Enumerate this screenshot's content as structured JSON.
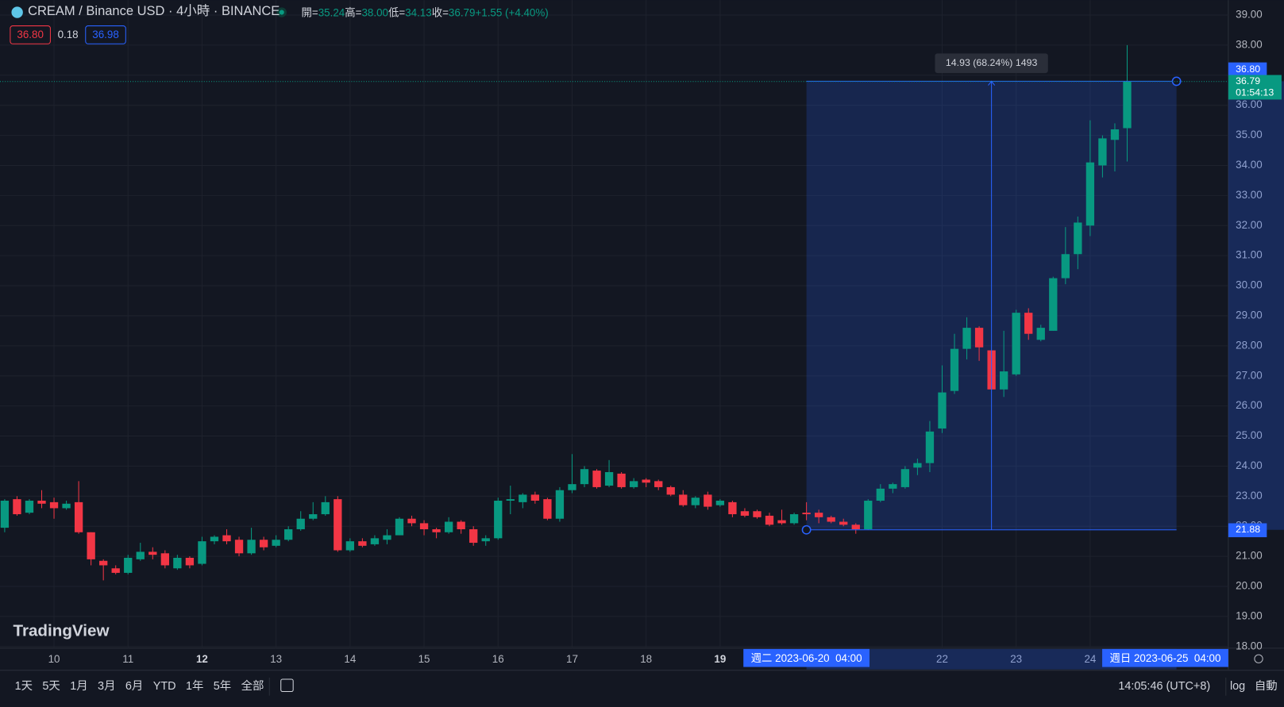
{
  "header": {
    "symbol": "CREAM / Binance USD · 4小時 · BINANCE",
    "ohlc": [
      {
        "label": "開=",
        "value": "35.24"
      },
      {
        "label": "高=",
        "value": "38.00"
      },
      {
        "label": "低=",
        "value": "34.13"
      },
      {
        "label": "收=",
        "value": "36.79"
      }
    ],
    "change": "+1.55 (+4.40%)",
    "bid": "36.80",
    "spread": "0.18",
    "ask": "36.98"
  },
  "chart_data": {
    "type": "candlestick",
    "up_color": "#089981",
    "down_color": "#f23645",
    "open": [
      21.95,
      22.9,
      22.45,
      22.85,
      22.8,
      22.6,
      22.8,
      21.8,
      20.85,
      20.6,
      20.45,
      20.9,
      21.15,
      21.1,
      20.6,
      20.95,
      20.75,
      21.5,
      21.7,
      21.55,
      21.1,
      21.55,
      21.35,
      21.55,
      21.9,
      22.25,
      22.4,
      22.9,
      21.2,
      21.5,
      21.4,
      21.55,
      21.7,
      22.25,
      22.1,
      21.9,
      21.8,
      22.15,
      21.9,
      21.5,
      21.6,
      22.85,
      22.8,
      23.05,
      22.9,
      22.25,
      23.2,
      23.4,
      23.85,
      23.35,
      23.75,
      23.3,
      23.55,
      23.5,
      23.3,
      23.05,
      22.7,
      23.05,
      22.7,
      22.8,
      22.5,
      22.5,
      22.35,
      22.2,
      22.1,
      22.45,
      22.45,
      22.3,
      22.15,
      22.05,
      21.9,
      22.85,
      23.25,
      23.3,
      23.95,
      24.1,
      25.25,
      26.5,
      27.9,
      28.6,
      27.85,
      26.55,
      27.05,
      29.1,
      28.2,
      28.5,
      30.25,
      31.05,
      32.0,
      34.0,
      34.85,
      35.24
    ],
    "high": [
      22.9,
      23.0,
      22.9,
      23.2,
      22.95,
      22.85,
      23.5,
      21.8,
      20.9,
      20.7,
      21.05,
      21.45,
      21.3,
      21.2,
      21.05,
      21.0,
      21.65,
      21.7,
      21.9,
      21.65,
      21.95,
      21.65,
      21.7,
      22.0,
      22.5,
      22.8,
      23.0,
      23.0,
      21.6,
      21.6,
      21.7,
      21.9,
      22.3,
      22.35,
      22.2,
      21.95,
      22.3,
      22.2,
      22.0,
      21.7,
      22.95,
      23.35,
      23.1,
      23.15,
      22.95,
      23.3,
      24.4,
      24.0,
      23.9,
      24.2,
      23.8,
      23.6,
      23.6,
      23.55,
      23.35,
      23.2,
      23.0,
      23.15,
      22.9,
      22.85,
      22.6,
      22.55,
      22.45,
      22.55,
      22.45,
      22.8,
      22.55,
      22.35,
      22.25,
      22.1,
      22.9,
      23.4,
      23.45,
      24.0,
      24.25,
      25.5,
      27.35,
      28.4,
      28.95,
      28.65,
      27.85,
      28.5,
      29.2,
      29.25,
      28.7,
      30.3,
      31.95,
      32.3,
      35.5,
      35.0,
      35.4,
      38.0
    ],
    "low": [
      21.8,
      22.35,
      22.4,
      22.6,
      22.25,
      22.55,
      21.75,
      20.7,
      20.2,
      20.4,
      20.4,
      20.85,
      20.9,
      20.6,
      20.55,
      20.6,
      20.7,
      21.4,
      21.4,
      21.0,
      21.05,
      21.2,
      21.3,
      21.5,
      21.85,
      22.2,
      22.35,
      21.15,
      21.15,
      21.3,
      21.35,
      21.4,
      21.7,
      22.0,
      21.7,
      21.6,
      21.75,
      21.75,
      21.35,
      21.35,
      21.55,
      22.4,
      22.6,
      22.75,
      22.2,
      22.15,
      23.1,
      23.3,
      23.25,
      23.3,
      23.25,
      23.25,
      23.3,
      23.2,
      23.0,
      22.65,
      22.6,
      22.55,
      22.65,
      22.3,
      22.3,
      22.25,
      22.0,
      22.05,
      22.05,
      22.2,
      22.1,
      22.1,
      22.0,
      21.75,
      21.88,
      22.8,
      23.1,
      23.25,
      23.7,
      23.8,
      25.1,
      26.4,
      27.55,
      27.5,
      26.55,
      26.3,
      27.0,
      28.2,
      28.15,
      28.5,
      30.05,
      30.55,
      31.65,
      33.6,
      33.8,
      34.13
    ],
    "close": [
      22.85,
      22.4,
      22.85,
      22.75,
      22.6,
      22.75,
      21.8,
      20.9,
      20.7,
      20.45,
      20.95,
      21.15,
      21.05,
      20.7,
      20.95,
      20.7,
      21.5,
      21.65,
      21.5,
      21.1,
      21.55,
      21.3,
      21.55,
      21.9,
      22.25,
      22.4,
      22.8,
      21.2,
      21.5,
      21.35,
      21.6,
      21.7,
      22.25,
      22.1,
      21.9,
      21.8,
      22.15,
      21.9,
      21.45,
      21.6,
      22.85,
      22.9,
      23.05,
      22.85,
      22.25,
      23.2,
      23.4,
      23.9,
      23.3,
      23.8,
      23.3,
      23.5,
      23.45,
      23.3,
      23.05,
      22.7,
      22.95,
      22.65,
      22.85,
      22.4,
      22.35,
      22.3,
      22.05,
      22.1,
      22.4,
      22.4,
      22.3,
      22.15,
      22.05,
      21.9,
      22.85,
      23.25,
      23.4,
      23.9,
      24.1,
      25.15,
      26.45,
      27.9,
      28.6,
      27.95,
      26.55,
      27.15,
      29.1,
      28.4,
      28.6,
      30.25,
      31.05,
      32.1,
      34.1,
      34.9,
      35.2,
      36.79
    ],
    "xlim": [
      -0.38,
      99.2
    ],
    "ylim": [
      18,
      39.5
    ],
    "xticks": [
      {
        "value": 4,
        "label": "10"
      },
      {
        "value": 10,
        "label": "11"
      },
      {
        "value": 16,
        "label": "12",
        "bold": true
      },
      {
        "value": 22,
        "label": "13"
      },
      {
        "value": 28,
        "label": "14"
      },
      {
        "value": 34,
        "label": "15"
      },
      {
        "value": 40,
        "label": "16"
      },
      {
        "value": 46,
        "label": "17"
      },
      {
        "value": 52,
        "label": "18"
      },
      {
        "value": 58,
        "label": "19",
        "bold": true
      },
      {
        "value": 76,
        "label": "22"
      },
      {
        "value": 82,
        "label": "23"
      },
      {
        "value": 88,
        "label": "24"
      }
    ],
    "yticks": [
      {
        "value": 18,
        "label": "18.00"
      },
      {
        "value": 19,
        "label": "19.00"
      },
      {
        "value": 20,
        "label": "20.00"
      },
      {
        "value": 21,
        "label": "21.00"
      },
      {
        "value": 22,
        "label": "22.00"
      },
      {
        "value": 23,
        "label": "23.00"
      },
      {
        "value": 24,
        "label": "24.00"
      },
      {
        "value": 25,
        "label": "25.00"
      },
      {
        "value": 26,
        "label": "26.00"
      },
      {
        "value": 27,
        "label": "27.00"
      },
      {
        "value": 28,
        "label": "28.00"
      },
      {
        "value": 29,
        "label": "29.00"
      },
      {
        "value": 30,
        "label": "30.00"
      },
      {
        "value": 31,
        "label": "31.00"
      },
      {
        "value": 32,
        "label": "32.00"
      },
      {
        "value": 33,
        "label": "33.00"
      },
      {
        "value": 34,
        "label": "34.00"
      },
      {
        "value": 35,
        "label": "35.00"
      },
      {
        "value": 36,
        "label": "36.00"
      },
      {
        "value": 37,
        "label": "37.00"
      },
      {
        "value": 38,
        "label": "38.00"
      },
      {
        "value": 39,
        "label": "39.00"
      }
    ],
    "grid": true,
    "last": {
      "value": 36.79,
      "label": "36.79",
      "countdown": "01:54:13"
    },
    "measure": {
      "x": [
        65,
        95
      ],
      "from": {
        "value": 21.88,
        "label": "21.88"
      },
      "to": {
        "value": 36.8,
        "label": "36.80"
      },
      "label": "14.93 (68.24%) 1493",
      "start_label": "週二 2023-06-20  04:00",
      "end_label": "週日 2023-06-25  04:00",
      "color": "#2962ff"
    }
  },
  "toolbar": {
    "ranges": [
      "1天",
      "5天",
      "1月",
      "3月",
      "6月",
      "YTD",
      "1年",
      "5年",
      "全部"
    ],
    "clock": "14:05:46 (UTC+8)",
    "log": "log",
    "auto": "自動"
  },
  "logo": "TradingView"
}
